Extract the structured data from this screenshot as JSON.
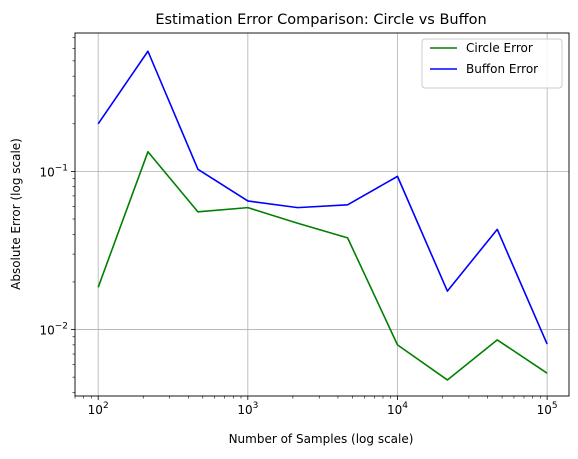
{
  "chart_data": {
    "type": "line",
    "title": "Estimation Error Comparison: Circle vs Buffon",
    "xlabel": "Number of Samples (log scale)",
    "ylabel": "Absolute Error (log scale)",
    "xscale": "log",
    "yscale": "log",
    "xlim": [
      70,
      140000
    ],
    "ylim": [
      0.0038,
      0.75
    ],
    "grid": true,
    "legend_position": "top-right",
    "x": [
      100,
      215,
      464,
      1000,
      2154,
      4642,
      10000,
      21544,
      46416,
      100000
    ],
    "series": [
      {
        "name": "Circle Error",
        "color": "#008000",
        "values": [
          0.0185,
          0.133,
          0.0555,
          0.059,
          0.047,
          0.038,
          0.008,
          0.0048,
          0.0086,
          0.0053
        ]
      },
      {
        "name": "Buffon Error",
        "color": "#0000ff",
        "values": [
          0.2,
          0.575,
          0.103,
          0.065,
          0.059,
          0.0615,
          0.093,
          0.0175,
          0.043,
          0.0081
        ]
      }
    ],
    "x_ticks": [
      {
        "value": 100,
        "base": "10",
        "exp": "2"
      },
      {
        "value": 1000,
        "base": "10",
        "exp": "3"
      },
      {
        "value": 10000,
        "base": "10",
        "exp": "4"
      },
      {
        "value": 100000,
        "base": "10",
        "exp": "5"
      }
    ],
    "y_ticks": [
      {
        "value": 0.01,
        "base": "10",
        "exp": "−2"
      },
      {
        "value": 0.1,
        "base": "10",
        "exp": "−1"
      }
    ]
  }
}
